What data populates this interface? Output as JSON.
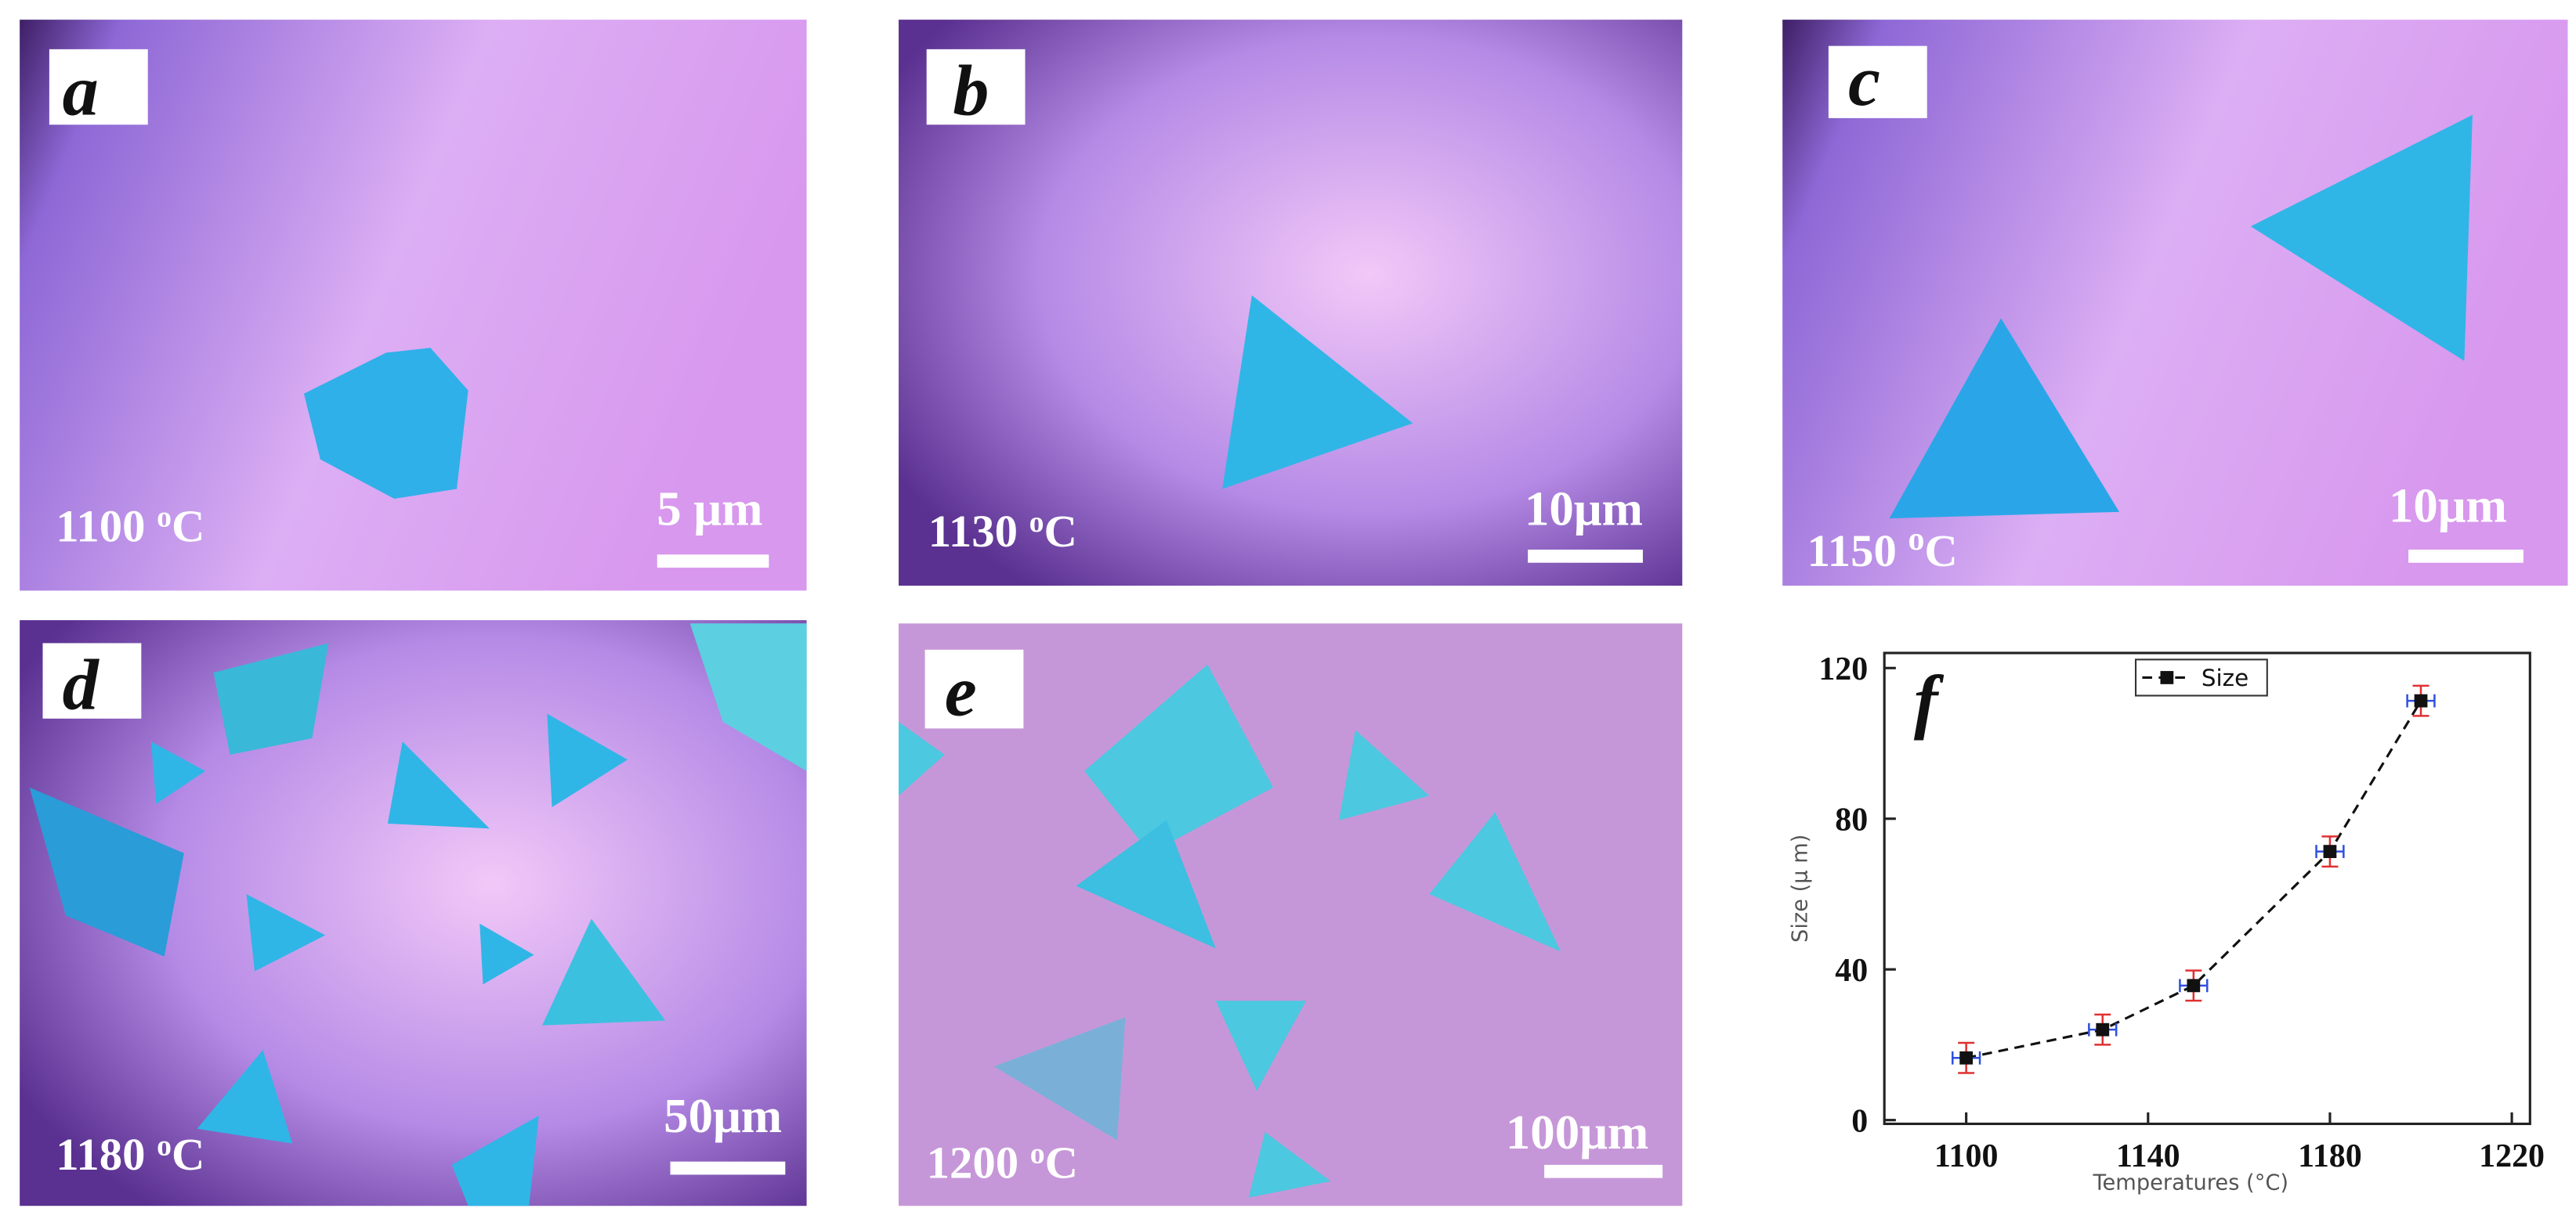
{
  "panels": [
    {
      "label": "a",
      "temp": "1100 ",
      "sup": "o",
      "unit": "C",
      "scale": "5 μm"
    },
    {
      "label": "b",
      "temp": "1130 ",
      "sup": "o",
      "unit": "C",
      "scale": "10μm"
    },
    {
      "label": "c",
      "temp": "1150 ",
      "sup": "o",
      "unit": "C",
      "scale": "10μm"
    },
    {
      "label": "d",
      "temp": "1180 ",
      "sup": "o",
      "unit": "C",
      "scale": "50μm"
    },
    {
      "label": "e",
      "temp": "1200 ",
      "sup": "o",
      "unit": "C",
      "scale": "100μm"
    }
  ],
  "chart_data": {
    "type": "line",
    "panel_label": "f",
    "x_label": "Temperatures (°C)",
    "y_label": "Size (μ m)",
    "x": [
      1100,
      1130,
      1150,
      1180,
      1200
    ],
    "series": [
      {
        "name": "Size",
        "color": "#111111",
        "values": [
          16.5,
          24,
          35.7,
          71.3,
          111.3
        ],
        "y_err": [
          4,
          4,
          4,
          4,
          4
        ],
        "x_err": [
          3,
          3,
          3,
          3,
          3
        ]
      }
    ],
    "xlim": [
      1082,
      1224
    ],
    "xticks": [
      1100,
      1140,
      1180,
      1220
    ],
    "ylim": [
      -1,
      124
    ],
    "yticks": [
      0,
      40,
      80,
      120
    ],
    "legend": "top",
    "line_style": "dashed",
    "error_color_y": "#e03030",
    "error_color_x": "#3050e0"
  }
}
